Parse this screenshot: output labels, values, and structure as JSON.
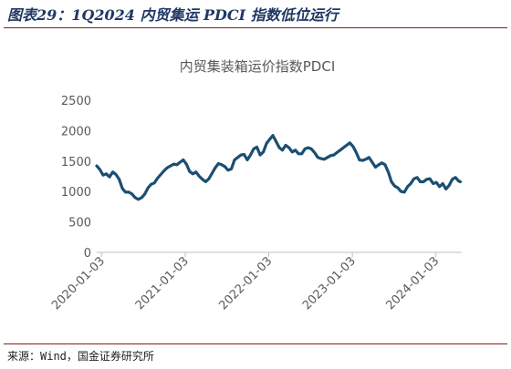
{
  "figure": {
    "caption": "图表29：1Q2024 内贸集运 PDCI 指数低位运行",
    "source": "来源：Wind，国金证券研究所"
  },
  "colors": {
    "line": "#1b4f72",
    "caption": "#1f3864",
    "rule": "#8b1a1a",
    "axis_text": "#595959",
    "axis_line": "#bfbfbf"
  },
  "chart_data": {
    "type": "line",
    "title": "内贸集装箱运价指数PDCI",
    "xlabel": "",
    "ylabel": "",
    "ylim": [
      0,
      2500
    ],
    "yticks": [
      "0",
      "500",
      "1000",
      "1500",
      "2000",
      "2500"
    ],
    "xlim": [
      "2019-12-13",
      "2024-04-25"
    ],
    "xticks": [
      "2020-01-03",
      "2021-01-03",
      "2022-01-03",
      "2023-01-03",
      "2024-01-03"
    ],
    "grid": false,
    "legend": "none",
    "series": [
      {
        "x": [
          "2019-12-13",
          "2019-12-27",
          "2020-01-10",
          "2020-01-24",
          "2020-02-07",
          "2020-02-21",
          "2020-03-06",
          "2020-03-20",
          "2020-04-03",
          "2020-04-17",
          "2020-05-01",
          "2020-05-15",
          "2020-05-29",
          "2020-06-12",
          "2020-06-26",
          "2020-07-10",
          "2020-07-24",
          "2020-08-07",
          "2020-08-21",
          "2020-09-04",
          "2020-09-18",
          "2020-10-02",
          "2020-10-16",
          "2020-10-30",
          "2020-11-13",
          "2020-11-27",
          "2020-12-11",
          "2020-12-25",
          "2021-01-08",
          "2021-01-22",
          "2021-02-05",
          "2021-02-19",
          "2021-03-05",
          "2021-03-19",
          "2021-04-02",
          "2021-04-16",
          "2021-04-30",
          "2021-05-14",
          "2021-05-28",
          "2021-06-11",
          "2021-06-25",
          "2021-07-09",
          "2021-07-23",
          "2021-08-06",
          "2021-08-20",
          "2021-09-03",
          "2021-09-17",
          "2021-10-01",
          "2021-10-15",
          "2021-10-29",
          "2021-11-12",
          "2021-11-26",
          "2021-12-10",
          "2021-12-24",
          "2022-01-07",
          "2022-01-21",
          "2022-02-04",
          "2022-02-18",
          "2022-03-04",
          "2022-03-18",
          "2022-04-01",
          "2022-04-15",
          "2022-04-29",
          "2022-05-13",
          "2022-05-27",
          "2022-06-10",
          "2022-06-24",
          "2022-07-08",
          "2022-07-22",
          "2022-08-05",
          "2022-08-19",
          "2022-09-02",
          "2022-09-16",
          "2022-09-30",
          "2022-10-14",
          "2022-10-28",
          "2022-11-11",
          "2022-11-25",
          "2022-12-09",
          "2022-12-23",
          "2023-01-06",
          "2023-01-20",
          "2023-02-03",
          "2023-02-17",
          "2023-03-03",
          "2023-03-17",
          "2023-03-31",
          "2023-04-14",
          "2023-04-28",
          "2023-05-12",
          "2023-05-26",
          "2023-06-09",
          "2023-06-23",
          "2023-07-07",
          "2023-07-21",
          "2023-08-04",
          "2023-08-18",
          "2023-09-01",
          "2023-09-15",
          "2023-09-29",
          "2023-10-13",
          "2023-10-27",
          "2023-11-10",
          "2023-11-24",
          "2023-12-08",
          "2023-12-22",
          "2024-01-05",
          "2024-01-19",
          "2024-02-02",
          "2024-02-16",
          "2024-03-01",
          "2024-03-15",
          "2024-03-29",
          "2024-04-12",
          "2024-04-19"
        ],
        "values": [
          1420,
          1360,
          1270,
          1290,
          1240,
          1320,
          1280,
          1200,
          1050,
          990,
          990,
          960,
          900,
          870,
          900,
          960,
          1060,
          1120,
          1140,
          1220,
          1280,
          1340,
          1390,
          1420,
          1450,
          1440,
          1480,
          1520,
          1450,
          1330,
          1290,
          1320,
          1250,
          1200,
          1160,
          1210,
          1300,
          1390,
          1460,
          1440,
          1410,
          1350,
          1370,
          1520,
          1560,
          1600,
          1610,
          1520,
          1600,
          1700,
          1730,
          1600,
          1650,
          1790,
          1860,
          1920,
          1820,
          1720,
          1680,
          1760,
          1720,
          1650,
          1680,
          1620,
          1620,
          1700,
          1720,
          1700,
          1640,
          1560,
          1540,
          1530,
          1560,
          1590,
          1600,
          1640,
          1680,
          1720,
          1760,
          1800,
          1740,
          1640,
          1520,
          1510,
          1530,
          1560,
          1480,
          1400,
          1440,
          1470,
          1440,
          1320,
          1160,
          1090,
          1060,
          1000,
          990,
          1080,
          1130,
          1210,
          1230,
          1160,
          1160,
          1200,
          1210,
          1130,
          1150,
          1080,
          1130,
          1040,
          1100,
          1200,
          1230,
          1170,
          1160
        ]
      }
    ]
  }
}
